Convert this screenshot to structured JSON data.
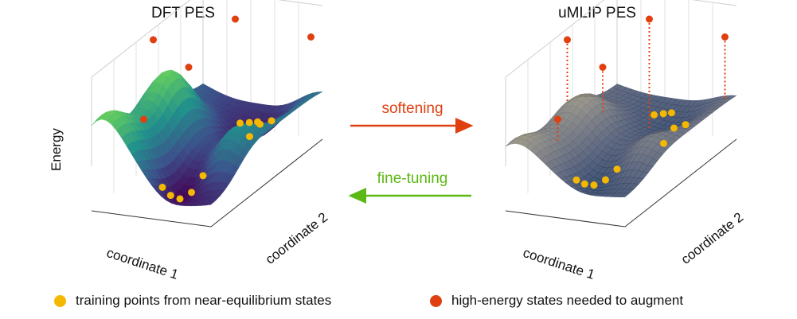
{
  "left_panel": {
    "title": "DFT PES",
    "y_label": "Energy",
    "x1_label": "coordinate 1",
    "x2_label": "coordinate 2"
  },
  "right_panel": {
    "title": "uMLIP PES",
    "x1_label": "coordinate 1",
    "x2_label": "coordinate 2"
  },
  "arrows": {
    "softening": {
      "label": "softening",
      "color": "#e04010"
    },
    "fine_tuning": {
      "label": "fine-tuning",
      "color": "#5cb814"
    }
  },
  "legend": {
    "training": {
      "label": "training points from near-equilibrium states",
      "color": "#f5b800"
    },
    "high_energy": {
      "label": "high-energy states needed to augment",
      "color": "#e04010"
    }
  },
  "colors": {
    "viridis": [
      "#440154",
      "#3b528b",
      "#21918c",
      "#5ec962",
      "#fde725"
    ],
    "cividis": [
      "#00204c",
      "#414d6b",
      "#7c7b78",
      "#bcaf6f",
      "#ffea46"
    ],
    "training_point": "#f5b800",
    "high_energy_point": "#e04010"
  }
}
